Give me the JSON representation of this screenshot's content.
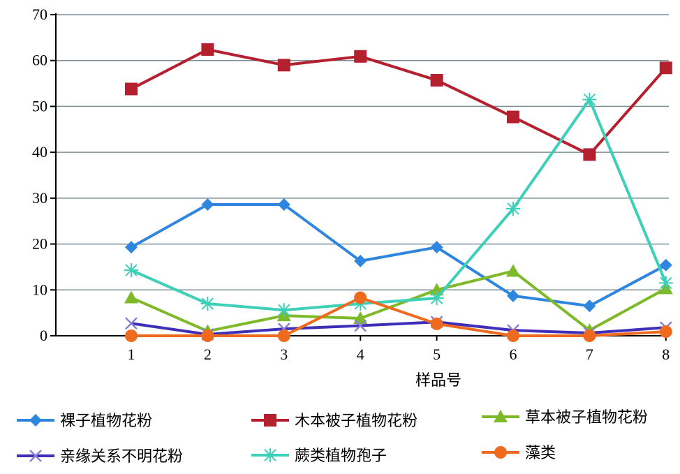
{
  "chart_data": {
    "type": "line",
    "title": "",
    "xlabel": "样品号",
    "ylabel": "",
    "x": [
      1,
      2,
      3,
      4,
      5,
      6,
      7,
      8
    ],
    "ylim": [
      0,
      70
    ],
    "yticks": [
      0,
      10,
      20,
      30,
      40,
      50,
      60,
      70
    ],
    "grid": "horizontal",
    "legend_placement": "bottom",
    "series": [
      {
        "name": "裸子植物花粉",
        "color": "#2E86DE",
        "marker": "diamond",
        "values": [
          19.3,
          28.6,
          28.6,
          16.3,
          19.3,
          8.7,
          6.5,
          15.4
        ]
      },
      {
        "name": "木本被子植物花粉",
        "color": "#B5202E",
        "marker": "square",
        "values": [
          53.8,
          62.4,
          59.0,
          60.9,
          55.7,
          47.7,
          39.5,
          58.4
        ]
      },
      {
        "name": "草本被子植物花粉",
        "color": "#7DB928",
        "marker": "triangle",
        "values": [
          8.3,
          1.0,
          4.4,
          3.8,
          10.0,
          14.1,
          1.2,
          10.3
        ]
      },
      {
        "name": "亲缘关系不明花粉",
        "color": "#3F2FB8",
        "marker": "x",
        "values": [
          2.7,
          0.3,
          1.5,
          2.2,
          3.0,
          1.2,
          0.6,
          1.8
        ]
      },
      {
        "name": "蕨类植物孢子",
        "color": "#3ECFB8",
        "marker": "star",
        "values": [
          14.3,
          7.0,
          5.6,
          7.0,
          8.2,
          27.7,
          51.5,
          11.5
        ]
      },
      {
        "name": "藻类",
        "color": "#EE6A1E",
        "marker": "circle",
        "values": [
          0.0,
          0.0,
          0.0,
          8.3,
          2.6,
          0.0,
          0.0,
          0.9
        ]
      }
    ]
  }
}
